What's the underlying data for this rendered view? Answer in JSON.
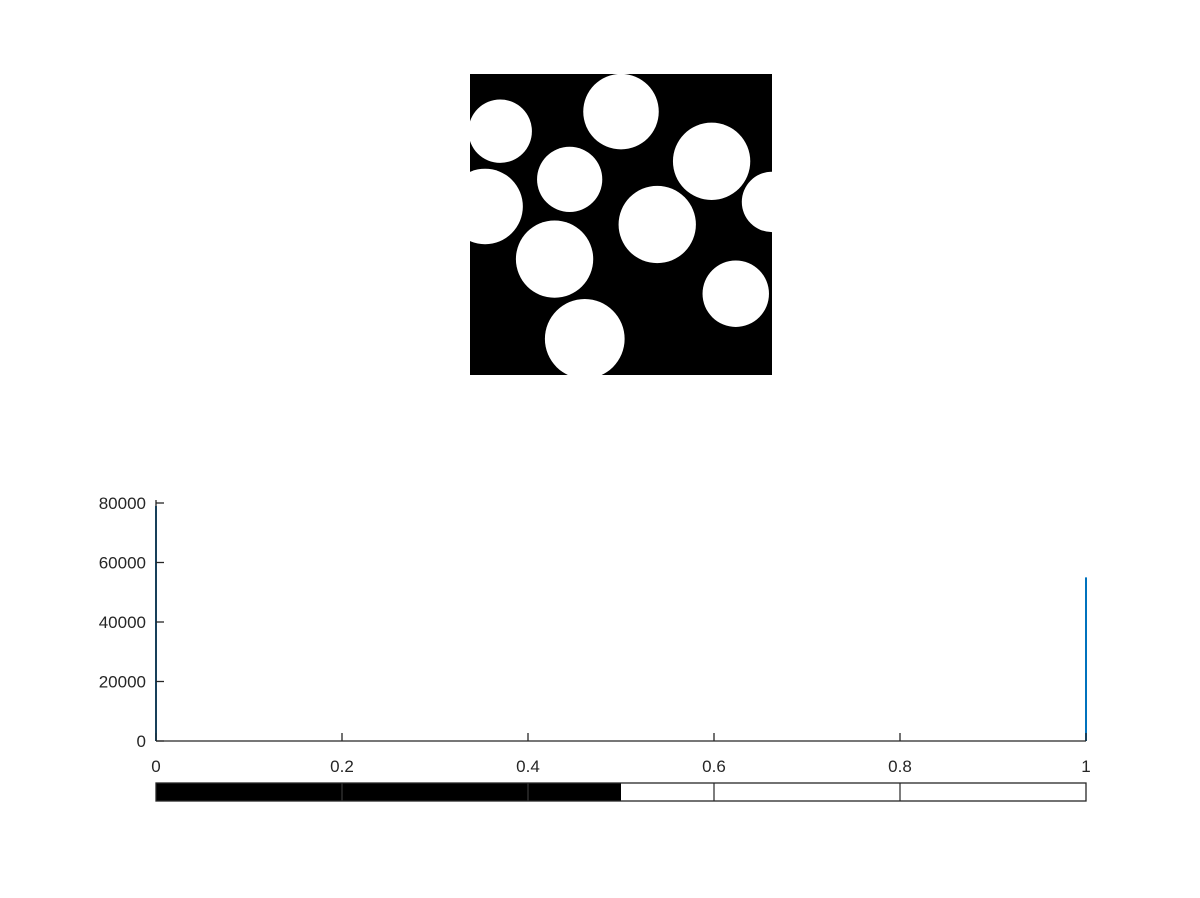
{
  "chart_data": [
    {
      "type": "image",
      "mode": "binary",
      "background": "#000000",
      "foreground": "#ffffff",
      "blobs": [
        {
          "cx": 0.1,
          "cy": 0.19,
          "r": 0.105
        },
        {
          "cx": 0.5,
          "cy": 0.125,
          "r": 0.125
        },
        {
          "cx": 0.8,
          "cy": 0.29,
          "r": 0.128
        },
        {
          "cx": 0.33,
          "cy": 0.35,
          "r": 0.108
        },
        {
          "cx": 0.05,
          "cy": 0.44,
          "r": 0.125
        },
        {
          "cx": 1.0,
          "cy": 0.425,
          "r": 0.1
        },
        {
          "cx": 0.62,
          "cy": 0.5,
          "r": 0.128
        },
        {
          "cx": 0.28,
          "cy": 0.615,
          "r": 0.128
        },
        {
          "cx": 0.88,
          "cy": 0.73,
          "r": 0.11
        },
        {
          "cx": 0.38,
          "cy": 0.88,
          "r": 0.132
        }
      ]
    },
    {
      "type": "bar",
      "bins": [
        0,
        1
      ],
      "values": [
        79000,
        55000
      ],
      "bar_color": "#0072bd",
      "xlim": [
        0,
        1
      ],
      "ylim": [
        0,
        80000
      ],
      "xticks": [
        0,
        0.2,
        0.4,
        0.6,
        0.8,
        1
      ],
      "yticks": [
        0,
        20000,
        40000,
        60000,
        80000
      ],
      "xtick_labels": [
        "0",
        "0.2",
        "0.4",
        "0.6",
        "0.8",
        "1"
      ],
      "ytick_labels": [
        "0",
        "20000",
        "40000",
        "60000",
        "80000"
      ],
      "colorbar": {
        "threshold": 0.5,
        "low_color": "#000000",
        "high_color": "#ffffff"
      }
    }
  ]
}
